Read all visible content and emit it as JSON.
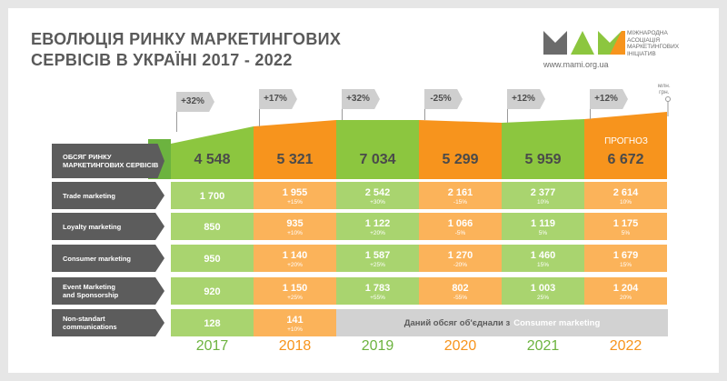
{
  "header": {
    "title_line1": "ЕВОЛЮЦІЯ РИНКУ МАРКЕТИНГОВИХ",
    "title_line2": "СЕРВІСІВ В УКРАЇНІ 2017 - 2022",
    "org_line1": "Міжнародна",
    "org_line2": "асоціація",
    "org_line3": "маркетингових",
    "org_line4": "ініціатив",
    "url": "www.mami.org.ua",
    "units_line1": "млн.",
    "units_line2": "грн."
  },
  "colors": {
    "green": "#8cc63f",
    "green_dark": "#6cb33f",
    "orange": "#f7941d",
    "gray_label": "#5c5c5c",
    "light_green": "#a9d46f",
    "light_orange": "#fbb35a"
  },
  "chart_data": {
    "type": "table",
    "years": [
      "2017",
      "2018",
      "2019",
      "2020",
      "2021",
      "2022"
    ],
    "growth_flags": [
      "+32%",
      "+17%",
      "+32%",
      "-25%",
      "+12%",
      "+12%"
    ],
    "forecast_label": "ПРОГНОЗ",
    "total": {
      "label": "ОБСЯГ РИНКУ МАРКЕТИНГОВИХ СЕРВІСІВ",
      "values": [
        "4 548",
        "5 321",
        "7 034",
        "5 299",
        "5 959",
        "6 672"
      ]
    },
    "rows": [
      {
        "label1": "Trade marketing",
        "label2": "",
        "values": [
          "1 700",
          "1 955",
          "2 542",
          "2 161",
          "2 377",
          "2 614"
        ],
        "changes": [
          "",
          "+15%",
          "+30%",
          "-15%",
          "10%",
          "10%"
        ]
      },
      {
        "label1": "Loyalty marketing",
        "label2": "",
        "values": [
          "850",
          "935",
          "1 122",
          "1 066",
          "1 119",
          "1 175"
        ],
        "changes": [
          "",
          "+10%",
          "+20%",
          "-5%",
          "5%",
          "5%"
        ]
      },
      {
        "label1": "Consumer marketing",
        "label2": "",
        "values": [
          "950",
          "1 140",
          "1 587",
          "1 270",
          "1 460",
          "1 679"
        ],
        "changes": [
          "",
          "+20%",
          "+25%",
          "-20%",
          "15%",
          "15%"
        ]
      },
      {
        "label1": "Event Marketing",
        "label2": "and Sponsorship",
        "values": [
          "920",
          "1 150",
          "1 783",
          "802",
          "1 003",
          "1 204"
        ],
        "changes": [
          "",
          "+25%",
          "+55%",
          "-55%",
          "25%",
          "20%"
        ]
      },
      {
        "label1": "Non-standart",
        "label2": "communications",
        "values": [
          "128",
          "141"
        ],
        "changes": [
          "",
          "+10%"
        ]
      }
    ],
    "merged_note": "Даний обсяг об'єднали з",
    "merged_note_highlight": "Consumer marketing"
  }
}
